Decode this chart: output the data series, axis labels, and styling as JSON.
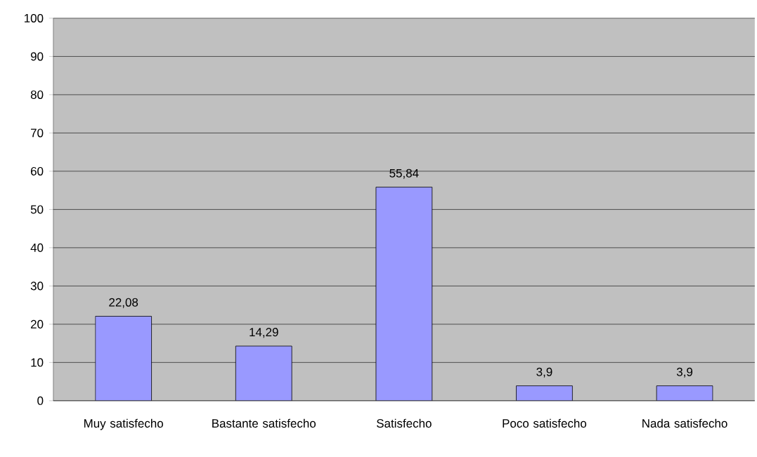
{
  "chart_data": {
    "type": "bar",
    "categories": [
      "Muy satisfecho",
      "Bastante satisfecho",
      "Satisfecho",
      "Poco satisfecho",
      "Nada satisfecho"
    ],
    "values": [
      22.08,
      14.29,
      55.84,
      3.9,
      3.9
    ],
    "value_labels": [
      "22,08",
      "14,29",
      "55,84",
      "3,9",
      "3,9"
    ],
    "color": "#9999ff",
    "ylim": [
      0,
      100
    ],
    "yticks": [
      0,
      10,
      20,
      30,
      40,
      50,
      60,
      70,
      80,
      90,
      100
    ],
    "grid": "y"
  }
}
